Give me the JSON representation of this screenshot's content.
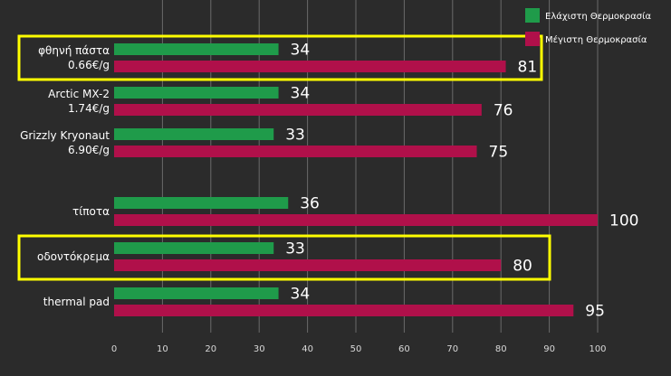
{
  "chart_data": {
    "type": "bar",
    "orientation": "horizontal",
    "categories": [
      [
        "φθηνή πάστα",
        "0.66€/g"
      ],
      [
        "Arctic MX-2",
        "1.74€/g"
      ],
      [
        "Grizzly Kryonaut",
        "6.90€/g"
      ],
      [
        "τίποτα"
      ],
      [
        "οδοντόκρεμα"
      ],
      [
        "thermal pad"
      ]
    ],
    "series": [
      {
        "name": "Ελάχιστη Θερμοκρασία",
        "color": "#1f9b4a",
        "values": [
          34,
          34,
          33,
          36,
          33,
          34
        ]
      },
      {
        "name": "Μέγιστη Θερμοκρασία",
        "color": "#b0104a",
        "values": [
          81,
          76,
          75,
          100,
          80,
          95
        ]
      }
    ],
    "xlim": [
      0,
      100
    ],
    "xticks": [
      "0",
      "10",
      "20",
      "30",
      "40",
      "50",
      "60",
      "70",
      "80",
      "90",
      "100"
    ],
    "grid": true,
    "legend_position": "top-right",
    "highlighted_categories": [
      0,
      4
    ],
    "highlight_color": "#ffff00",
    "title": "",
    "xlabel": "",
    "ylabel": ""
  }
}
